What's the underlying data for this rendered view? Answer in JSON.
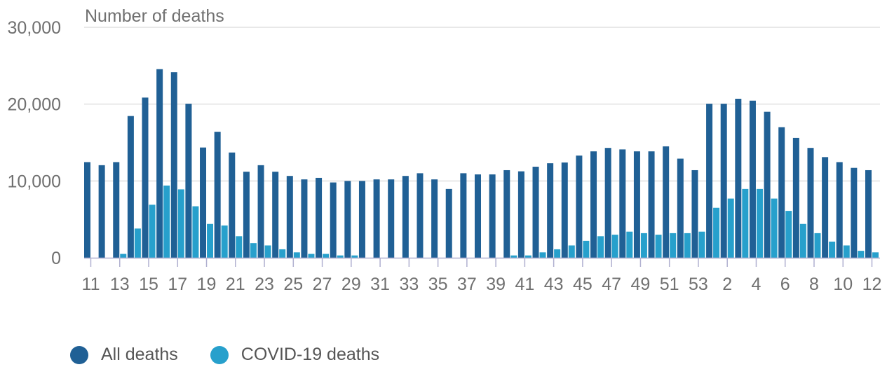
{
  "colors": {
    "all": "#206095",
    "covid": "#27a0cc",
    "grid": "#e0e0e0",
    "axis": "#b0b0d0",
    "text": "#707070"
  },
  "chart_data": {
    "type": "bar",
    "title": "",
    "ylabel": "Number of deaths",
    "xlabel": "",
    "ylim": [
      0,
      30000
    ],
    "yticks": [
      "0",
      "10,000",
      "20,000",
      "30,000"
    ],
    "ytick_values": [
      0,
      10000,
      20000,
      30000
    ],
    "grid": true,
    "legend_position": "bottom-left",
    "categories": [
      "11",
      "12",
      "13",
      "14",
      "15",
      "16",
      "17",
      "18",
      "19",
      "20",
      "21",
      "22",
      "23",
      "24",
      "25",
      "26",
      "27",
      "28",
      "29",
      "30",
      "31",
      "32",
      "33",
      "34",
      "35",
      "36",
      "37",
      "38",
      "39",
      "40",
      "41",
      "42",
      "43",
      "44",
      "45",
      "46",
      "47",
      "48",
      "49",
      "50",
      "51",
      "52",
      "53",
      "1",
      "2",
      "3",
      "4",
      "5",
      "6",
      "7",
      "8",
      "9",
      "10",
      "11",
      "12"
    ],
    "x_tick_labels": [
      "11",
      "13",
      "15",
      "17",
      "19",
      "21",
      "23",
      "25",
      "27",
      "29",
      "31",
      "33",
      "35",
      "37",
      "39",
      "41",
      "43",
      "45",
      "47",
      "49",
      "51",
      "53",
      "2",
      "4",
      "6",
      "8",
      "10",
      "12"
    ],
    "series": [
      {
        "name": "All deaths",
        "values": [
          12450,
          12050,
          12450,
          18450,
          20850,
          24550,
          24150,
          20050,
          14350,
          16400,
          13700,
          11200,
          12050,
          11200,
          10650,
          10200,
          10400,
          9800,
          10000,
          10000,
          10200,
          10200,
          10650,
          11000,
          10200,
          8950,
          11000,
          10850,
          10850,
          11400,
          11250,
          11850,
          12300,
          12400,
          13300,
          13850,
          14300,
          14100,
          13850,
          13850,
          14500,
          12900,
          11400,
          20050,
          20050,
          20700,
          20450,
          19000,
          17000,
          15600,
          14300,
          13100,
          12450,
          11700,
          11400
        ]
      },
      {
        "name": "COVID-19 deaths",
        "values": [
          0,
          0,
          500,
          3800,
          6900,
          9400,
          8900,
          6700,
          4400,
          4200,
          2800,
          1900,
          1600,
          1100,
          700,
          500,
          500,
          300,
          300,
          0,
          0,
          0,
          0,
          0,
          0,
          0,
          0,
          0,
          0,
          300,
          300,
          700,
          1100,
          1600,
          2200,
          2800,
          3000,
          3400,
          3200,
          3000,
          3200,
          3200,
          3400,
          6500,
          7700,
          8950,
          8950,
          7700,
          6100,
          4400,
          3200,
          2100,
          1600,
          900,
          700
        ]
      }
    ]
  }
}
